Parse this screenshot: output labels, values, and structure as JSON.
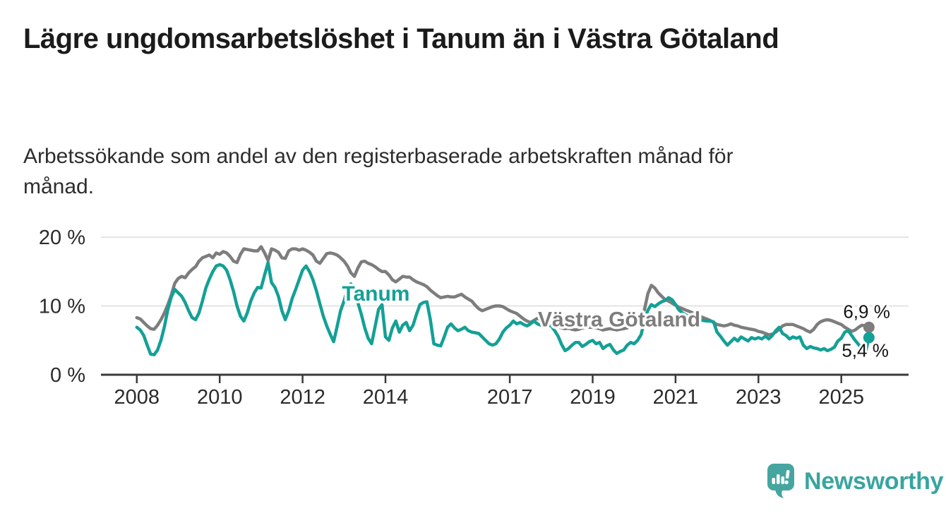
{
  "title": "Lägre ungdomsarbetslöshet i Tanum än i Västra Götaland",
  "subtitle": "Arbetssökande som andel av den registerbaserade arbetskraften månad för månad.",
  "logo": {
    "text": "Newsworthy",
    "icon": "speech-bubble-bar-chart-icon"
  },
  "colors": {
    "tanum_teal": "#14a096",
    "vastra_gray": "#7d7d7d",
    "grid": "#dcdcdc",
    "axis": "#3a3a3a",
    "tick_text": "#2b2b2b",
    "value_text": "#141414",
    "logo_teal": "#38a59f"
  },
  "chart_data": {
    "type": "line",
    "unit": "%",
    "frequency": "monthly",
    "x_start": {
      "year": 2008,
      "month": 1
    },
    "x_end": {
      "year": 2025,
      "month": 9
    },
    "x_ticks": [
      2008,
      2010,
      2012,
      2014,
      2017,
      2019,
      2021,
      2023,
      2025
    ],
    "y_ticks": [
      {
        "value": 0,
        "label": "0 %"
      },
      {
        "value": 10,
        "label": "10 %"
      },
      {
        "value": 20,
        "label": "20 %"
      }
    ],
    "ylim": [
      0,
      20.5
    ],
    "grid": "horizontal",
    "legend_position": "inline-labels",
    "series": [
      {
        "id": "vastra-gotaland",
        "name": "Västra Götaland",
        "color": "#7d7d7d",
        "end_label": "6,9 %",
        "last_value": 6.9,
        "label_pos": {
          "year": 2017.68,
          "value": 7.05
        },
        "end_label_offset": {
          "dx": 30,
          "dy": -13
        },
        "values": [
          8.3,
          8.1,
          7.6,
          7.1,
          6.7,
          6.6,
          7.2,
          8.0,
          9.0,
          10.2,
          11.6,
          13.3,
          14.0,
          14.3,
          14.1,
          14.8,
          15.3,
          15.7,
          16.5,
          17.0,
          17.2,
          17.4,
          17.0,
          17.7,
          17.5,
          17.9,
          17.7,
          17.2,
          16.5,
          16.3,
          17.5,
          18.3,
          18.2,
          18.1,
          18.0,
          18.0,
          18.6,
          17.7,
          16.6,
          18.3,
          18.1,
          17.8,
          17.0,
          16.9,
          18.0,
          18.3,
          18.3,
          18.1,
          18.3,
          18.1,
          17.8,
          17.4,
          16.5,
          16.2,
          16.9,
          17.6,
          17.7,
          17.6,
          17.4,
          17.0,
          16.5,
          15.8,
          14.8,
          14.3,
          15.5,
          16.4,
          16.5,
          16.2,
          16.0,
          15.7,
          15.3,
          15.0,
          15.0,
          14.5,
          13.8,
          13.5,
          13.9,
          14.3,
          14.2,
          14.2,
          13.8,
          13.5,
          13.3,
          13.1,
          12.8,
          12.3,
          11.9,
          11.5,
          11.2,
          11.3,
          11.4,
          11.3,
          11.3,
          11.5,
          11.7,
          11.3,
          11.0,
          10.7,
          10.1,
          9.6,
          9.3,
          9.5,
          9.7,
          9.9,
          10.0,
          10.0,
          9.9,
          9.6,
          9.3,
          9.1,
          8.9,
          8.5,
          8.1,
          7.8,
          7.6,
          7.9,
          8.2,
          8.0,
          7.8,
          7.6,
          7.4,
          7.2,
          7.0,
          6.8,
          6.7,
          6.8,
          6.6,
          6.5,
          6.6,
          6.8,
          6.9,
          6.9,
          6.9,
          6.8,
          6.7,
          6.5,
          6.6,
          6.7,
          6.6,
          6.5,
          6.6,
          6.7,
          6.8,
          7.0,
          7.2,
          7.4,
          8.0,
          9.5,
          11.8,
          13.0,
          12.6,
          11.9,
          11.4,
          10.9,
          10.7,
          10.4,
          10.1,
          9.8,
          9.6,
          9.4,
          9.2,
          9.0,
          8.8,
          8.5,
          8.3,
          8.1,
          7.9,
          7.6,
          7.3,
          7.2,
          7.1,
          7.2,
          7.4,
          7.2,
          7.1,
          6.9,
          6.8,
          6.7,
          6.6,
          6.5,
          6.3,
          6.2,
          6.0,
          5.8,
          5.9,
          6.2,
          6.6,
          7.1,
          7.3,
          7.3,
          7.3,
          7.1,
          6.9,
          6.7,
          6.4,
          6.2,
          6.6,
          7.3,
          7.7,
          7.9,
          8.0,
          7.9,
          7.7,
          7.5,
          7.3,
          6.9,
          6.6,
          6.3,
          6.5,
          6.9,
          7.2,
          7.1,
          6.9
        ]
      },
      {
        "id": "tanum",
        "name": "Tanum",
        "color": "#14a096",
        "end_label": "5,4 %",
        "last_value": 5.4,
        "label_pos": {
          "year": 2012.95,
          "value": 10.75
        },
        "end_label_offset": {
          "dx": 28,
          "dy": 27
        },
        "values": [
          6.9,
          6.5,
          5.7,
          4.3,
          3.0,
          2.9,
          3.6,
          5.0,
          7.0,
          9.5,
          11.3,
          12.4,
          11.9,
          11.4,
          10.5,
          9.3,
          8.3,
          8.0,
          9.0,
          10.7,
          12.6,
          13.9,
          15.0,
          15.8,
          16.0,
          15.8,
          15.2,
          13.8,
          12.1,
          10.0,
          8.5,
          7.8,
          9.0,
          10.7,
          11.9,
          12.7,
          12.6,
          14.5,
          16.3,
          13.4,
          12.7,
          11.4,
          9.3,
          8.0,
          9.3,
          11.1,
          12.4,
          13.8,
          15.2,
          15.8,
          15.0,
          13.8,
          12.2,
          10.3,
          8.5,
          7.1,
          5.9,
          4.8,
          7.0,
          9.3,
          10.7,
          12.5,
          13.2,
          12.0,
          10.5,
          8.8,
          6.8,
          5.3,
          4.5,
          7.0,
          9.5,
          10.2,
          5.5,
          5.0,
          6.8,
          7.8,
          6.2,
          7.2,
          7.6,
          6.4,
          7.2,
          8.8,
          10.2,
          10.5,
          10.6,
          8.0,
          4.5,
          4.3,
          4.2,
          5.5,
          6.9,
          7.4,
          6.8,
          6.4,
          6.6,
          6.9,
          6.4,
          6.2,
          6.1,
          6.0,
          5.5,
          5.0,
          4.5,
          4.3,
          4.5,
          5.2,
          6.2,
          6.8,
          7.2,
          7.8,
          7.4,
          7.6,
          7.3,
          7.1,
          7.4,
          7.8,
          7.4,
          7.2,
          7.3,
          7.2,
          7.1,
          6.4,
          5.6,
          4.4,
          3.5,
          3.8,
          4.3,
          4.7,
          4.7,
          4.1,
          4.4,
          4.8,
          5.0,
          4.5,
          4.7,
          3.8,
          4.2,
          4.4,
          3.6,
          3.1,
          3.4,
          3.6,
          4.3,
          4.7,
          4.5,
          5.0,
          5.8,
          7.8,
          9.4,
          10.2,
          9.9,
          10.3,
          10.6,
          10.8,
          11.2,
          10.9,
          10.2,
          9.4,
          9.0,
          8.7,
          8.4,
          8.2,
          8.0,
          7.9,
          7.9,
          7.8,
          7.8,
          7.7,
          6.2,
          5.6,
          4.9,
          4.3,
          4.8,
          5.3,
          4.9,
          5.5,
          5.2,
          4.9,
          5.4,
          5.2,
          5.4,
          5.2,
          5.6,
          5.2,
          5.7,
          6.4,
          6.9,
          6.0,
          5.7,
          5.2,
          5.5,
          5.3,
          5.5,
          4.3,
          3.8,
          4.1,
          3.9,
          3.8,
          3.6,
          3.8,
          3.5,
          3.7,
          4.0,
          4.9,
          5.3,
          6.2,
          6.4,
          5.7,
          5.0,
          4.4,
          3.7,
          3.2,
          5.4
        ]
      }
    ]
  }
}
